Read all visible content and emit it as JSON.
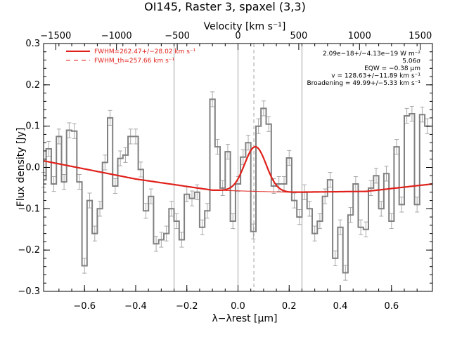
{
  "chart_data": {
    "type": "line",
    "title": "OI145, Raster 3, spaxel (3,3)",
    "xlabel": "λ−λrest [μm]",
    "ylabel": "Flux density [Jy]",
    "x2label": "Velocity [km s⁻¹]",
    "xlim": [
      -0.76,
      0.76
    ],
    "ylim": [
      -0.3,
      0.3
    ],
    "x2lim": [
      -1600,
      1600
    ],
    "xticks": [
      -0.6,
      -0.4,
      -0.2,
      0.0,
      0.2,
      0.4,
      0.6
    ],
    "xtick_labels": [
      "−0.6",
      "−0.4",
      "−0.2",
      "0.0",
      "0.2",
      "0.4",
      "0.6"
    ],
    "yticks": [
      -0.3,
      -0.2,
      -0.1,
      0.0,
      0.1,
      0.2,
      0.3
    ],
    "ytick_labels": [
      "−0.3",
      "−0.2",
      "−0.1",
      "0.0",
      "0.1",
      "0.2",
      "0.3"
    ],
    "x2ticks": [
      -1500,
      -1000,
      -500,
      0,
      500,
      1000,
      1500
    ],
    "x2tick_labels": [
      "−1500",
      "−1000",
      "−500",
      "0",
      "500",
      "1000",
      "1500"
    ],
    "vlines_solid": [
      -0.25,
      0.0,
      0.25
    ],
    "vline_dashed": 0.062,
    "legend": [
      {
        "label": "FWHM=262.47+/−28.02 km s⁻¹",
        "style": "solid"
      },
      {
        "label": "FWHM_th=257.66 km s⁻¹",
        "style": "dashed"
      }
    ],
    "info_lines": [
      "2.09e−18+/−4.13e−19 W m⁻²",
      "5.06σ",
      "EQW = −0.38 μm",
      "v = 128.63+/−11.89 km s⁻¹",
      "Broadening = 49.99+/−5.33 km s⁻¹"
    ],
    "colors": {
      "spectrum": "#808080",
      "errorbar": "#a9a9a9",
      "fit": "#e0201a",
      "vline": "#a0a0a0"
    },
    "fit_model": {
      "continuum_x": [
        -0.76,
        -0.4,
        -0.1,
        0.2,
        0.5,
        0.76
      ],
      "continuum_y": [
        0.016,
        -0.028,
        -0.055,
        -0.06,
        -0.058,
        -0.04
      ],
      "line_center": 0.068,
      "line_peak": 0.108,
      "line_sigma": 0.042
    },
    "series": [
      {
        "values_x": [
          -0.76,
          -0.74,
          -0.72,
          -0.7,
          -0.68,
          -0.66,
          -0.64,
          -0.62,
          -0.6,
          -0.58,
          -0.56,
          -0.54,
          -0.52,
          -0.5,
          -0.48,
          -0.46,
          -0.44,
          -0.42,
          -0.4,
          -0.38,
          -0.36,
          -0.34,
          -0.32,
          -0.3,
          -0.28,
          -0.26,
          -0.24,
          -0.22,
          -0.2,
          -0.18,
          -0.16,
          -0.14,
          -0.12,
          -0.1,
          -0.08,
          -0.06,
          -0.04,
          -0.02,
          0.0,
          0.02,
          0.04,
          0.06,
          0.08,
          0.1,
          0.12,
          0.14,
          0.16,
          0.18,
          0.2,
          0.22,
          0.24,
          0.26,
          0.28,
          0.3,
          0.32,
          0.34,
          0.36,
          0.38,
          0.4,
          0.42,
          0.44,
          0.46,
          0.48,
          0.5,
          0.52,
          0.54,
          0.56,
          0.58,
          0.6,
          0.62,
          0.64,
          0.66,
          0.68,
          0.7,
          0.72,
          0.74
        ],
        "values_y": [
          -0.03,
          0.045,
          -0.04,
          0.075,
          -0.035,
          0.09,
          0.088,
          -0.035,
          -0.238,
          -0.08,
          -0.16,
          -0.1,
          0.012,
          0.12,
          -0.045,
          0.022,
          0.03,
          0.075,
          0.075,
          -0.005,
          -0.105,
          -0.07,
          -0.185,
          -0.175,
          -0.16,
          -0.1,
          -0.13,
          -0.175,
          -0.065,
          -0.075,
          -0.06,
          -0.145,
          -0.105,
          0.165,
          0.05,
          -0.05,
          0.038,
          -0.13,
          -0.04,
          0.025,
          0.06,
          -0.155,
          0.1,
          0.143,
          0.105,
          -0.045,
          -0.04,
          -0.04,
          0.023,
          -0.08,
          -0.12,
          -0.06,
          -0.1,
          -0.16,
          -0.13,
          -0.07,
          -0.03,
          -0.22,
          -0.145,
          -0.255,
          -0.115,
          -0.04,
          -0.145,
          -0.15,
          -0.05,
          -0.02,
          -0.1,
          -0.015,
          -0.13,
          0.05,
          -0.09,
          0.125,
          0.13,
          -0.09,
          0.128,
          0.1
        ]
      }
    ]
  }
}
